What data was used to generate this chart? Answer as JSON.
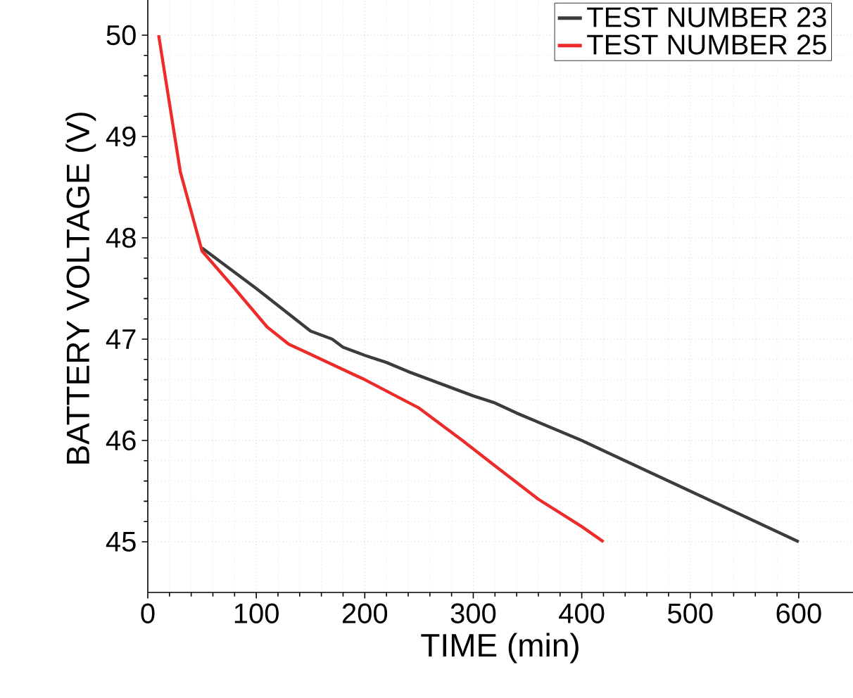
{
  "chart_data": {
    "type": "line",
    "xlabel": "TIME (min)",
    "ylabel": "BATTERY VOLTAGE (V)",
    "xlim": [
      0,
      650
    ],
    "ylim": [
      44.5,
      50.5
    ],
    "xticks": [
      0,
      100,
      200,
      300,
      400,
      500,
      600
    ],
    "yticks": [
      45,
      46,
      47,
      48,
      49,
      50
    ],
    "grid": true,
    "legend": "top right",
    "series": [
      {
        "name": "TEST NUMBER 23",
        "color": "#3c3c3c",
        "x": [
          50,
          100,
          150,
          170,
          180,
          200,
          220,
          240,
          270,
          300,
          320,
          340,
          400,
          420,
          500,
          600
        ],
        "values": [
          47.9,
          47.5,
          47.08,
          47.0,
          46.92,
          46.84,
          46.77,
          46.68,
          46.56,
          46.44,
          46.37,
          46.27,
          46.0,
          45.9,
          45.5,
          45.0
        ]
      },
      {
        "name": "TEST NUMBER 25",
        "color": "#ee2b2b",
        "x": [
          10,
          30,
          50,
          80,
          110,
          130,
          150,
          200,
          250,
          290,
          320,
          360,
          400,
          420
        ],
        "values": [
          50,
          48.65,
          47.87,
          47.5,
          47.12,
          46.95,
          46.85,
          46.6,
          46.32,
          46.0,
          45.75,
          45.42,
          45.15,
          45.0
        ]
      }
    ]
  }
}
